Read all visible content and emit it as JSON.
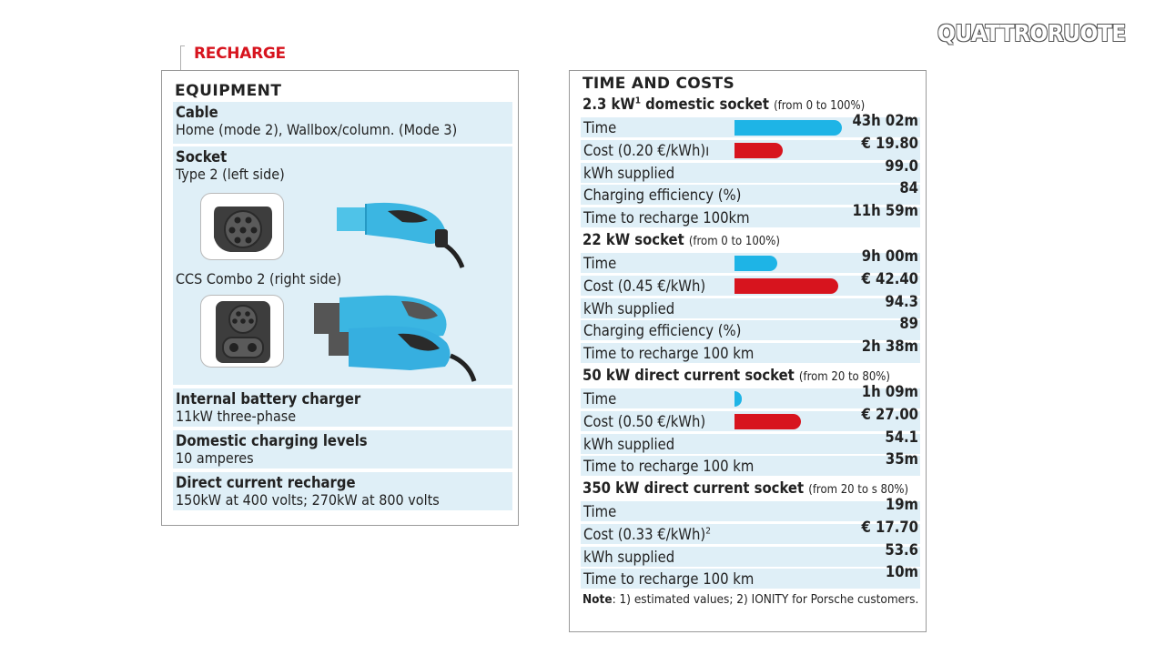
{
  "logo": "QUATTRORUOTE",
  "section_label": "RECHARGE",
  "equipment": {
    "title": "EQUIPMENT",
    "cable": {
      "heading": "Cable",
      "text": "Home (mode 2), Wallbox/column. (Mode 3)"
    },
    "socket": {
      "heading": "Socket",
      "text": "Type 2 (left side)",
      "text2": "CCS Combo 2 (right side)"
    },
    "internal_charger": {
      "heading": "Internal battery charger",
      "text": "11kW three-phase"
    },
    "domestic_levels": {
      "heading": "Domestic charging levels",
      "text": "10 amperes"
    },
    "dc_recharge": {
      "heading": "Direct current recharge",
      "text": "150kW at 400 volts; 270kW at 800 volts"
    }
  },
  "time_costs": {
    "title": "TIME AND COSTS",
    "sections": [
      {
        "heading": "2.3 kW",
        "heading_sup": "1",
        "heading_rest": " domestic socket",
        "sub": "(from 0 to 100%)",
        "rows": [
          {
            "label": "Time",
            "value": "43h 02m",
            "bar": "blue",
            "level": 1.0
          },
          {
            "label": "Cost (0.20 €/kWh)ı",
            "value": "€ 19.80",
            "bar": "red",
            "level": 0.45
          },
          {
            "label": "kWh supplied",
            "value": "99.0"
          },
          {
            "label": "Charging efficiency (%)",
            "value": "84"
          },
          {
            "label": "Time to recharge 100km",
            "value": "11h 59m"
          }
        ]
      },
      {
        "heading": "22 kW socket",
        "heading_sup": "",
        "heading_rest": "",
        "sub": "(from 0 to 100%)",
        "rows": [
          {
            "label": "Time",
            "value": "9h 00m",
            "bar": "blue",
            "level": 0.4
          },
          {
            "label": "Cost (0.45 €/kWh)",
            "value": "€ 42.40",
            "bar": "red",
            "level": 0.97
          },
          {
            "label": "kWh supplied",
            "value": "94.3"
          },
          {
            "label": "Charging efficiency (%)",
            "value": "89"
          },
          {
            "label": "Time to recharge 100 km",
            "value": "2h 38m"
          }
        ]
      },
      {
        "heading": "50 kW direct current socket",
        "heading_sup": "",
        "heading_rest": "",
        "sub": "(from 20 to 80%)",
        "rows": [
          {
            "label": "Time",
            "value": "1h 09m",
            "bar": "blue",
            "level": 0.07
          },
          {
            "label": "Cost (0.50 €/kWh)",
            "value": "€ 27.00",
            "bar": "red",
            "level": 0.62
          },
          {
            "label": "kWh supplied",
            "value": "54.1"
          },
          {
            "label": "Time to recharge 100 km",
            "value": "35m"
          }
        ]
      },
      {
        "heading": "350 kW direct current socket",
        "heading_sup": "",
        "heading_rest": "",
        "sub": "(from 20  to s 80%)",
        "rows": [
          {
            "label": "Time",
            "value": "19m"
          },
          {
            "label": "Cost (0.33 €/kWh)",
            "label_sup": "2",
            "value": "€ 17.70"
          },
          {
            "label": "kWh supplied",
            "value": "53.6"
          },
          {
            "label": "Time to recharge 100 km",
            "value": "10m"
          }
        ]
      }
    ],
    "note_label": "Note",
    "note_text": ": 1) estimated values; 2) IONITY for Porsche customers."
  },
  "colors": {
    "accent_red": "#d7141e",
    "bar_blue": "#1eb4e6",
    "row_bg": "#dfeff7"
  }
}
